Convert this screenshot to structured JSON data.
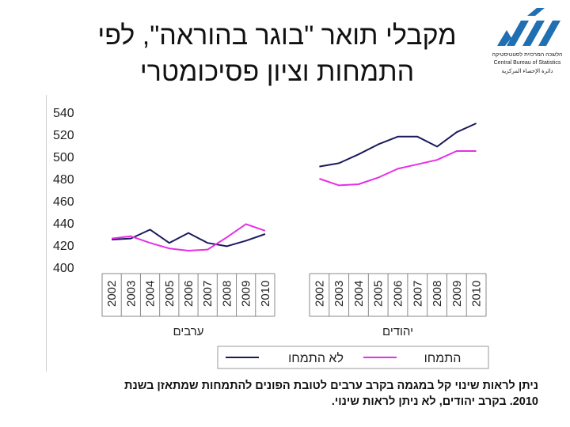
{
  "title": {
    "line1": "מקבלי תואר \"בוגר בהוראה\", לפי",
    "line2": "התמחות וציון פסיכומטרי"
  },
  "logo": {
    "hebrew": "הלשכה המרכזית לסטטיסטיקה",
    "english": "Central Bureau of Statistics",
    "arabic": "دائرة الإحصاء المركزية",
    "color": "#1f6fb2"
  },
  "footnote": {
    "line1": "ניתן לראות שינוי קל במגמה בקרב ערבים לטובת הפונים להתמחות שמתאזן בשנת",
    "line2": "2010. בקרב יהודים, לא ניתן לראות שינוי."
  },
  "chart_data": {
    "type": "line",
    "title": "",
    "ylim": [
      400,
      540
    ],
    "yticks": [
      "540",
      "520",
      "500",
      "480",
      "460",
      "440",
      "420",
      "400"
    ],
    "groups": [
      {
        "label": "ערבים",
        "years": [
          "2002",
          "2003",
          "2004",
          "2005",
          "2006",
          "2007",
          "2008",
          "2009",
          "2010"
        ],
        "series": [
          {
            "name": "לא התמחו",
            "color": "#1a1a5e",
            "values": [
              425,
              426,
              434,
              422,
              431,
              422,
              419,
              424,
              430
            ]
          },
          {
            "name": "התמחו",
            "color": "#e62ee6",
            "values": [
              426,
              428,
              422,
              417,
              415,
              416,
              427,
              439,
              433
            ]
          }
        ]
      },
      {
        "label": "יהודים",
        "years": [
          "2002",
          "2003",
          "2004",
          "2005",
          "2006",
          "2007",
          "2008",
          "2009",
          "2010"
        ],
        "series": [
          {
            "name": "לא התמחו",
            "color": "#1a1a5e",
            "values": [
              491,
              494,
              502,
              511,
              518,
              518,
              509,
              522,
              530
            ]
          },
          {
            "name": "התמחו",
            "color": "#e62ee6",
            "values": [
              480,
              474,
              475,
              481,
              489,
              493,
              497,
              505,
              505
            ]
          }
        ]
      }
    ],
    "legend": [
      {
        "name": "לא התמחו",
        "color": "#1a1a5e"
      },
      {
        "name": "התמחו",
        "color": "#e62ee6"
      }
    ],
    "legend_position": "bottom"
  }
}
